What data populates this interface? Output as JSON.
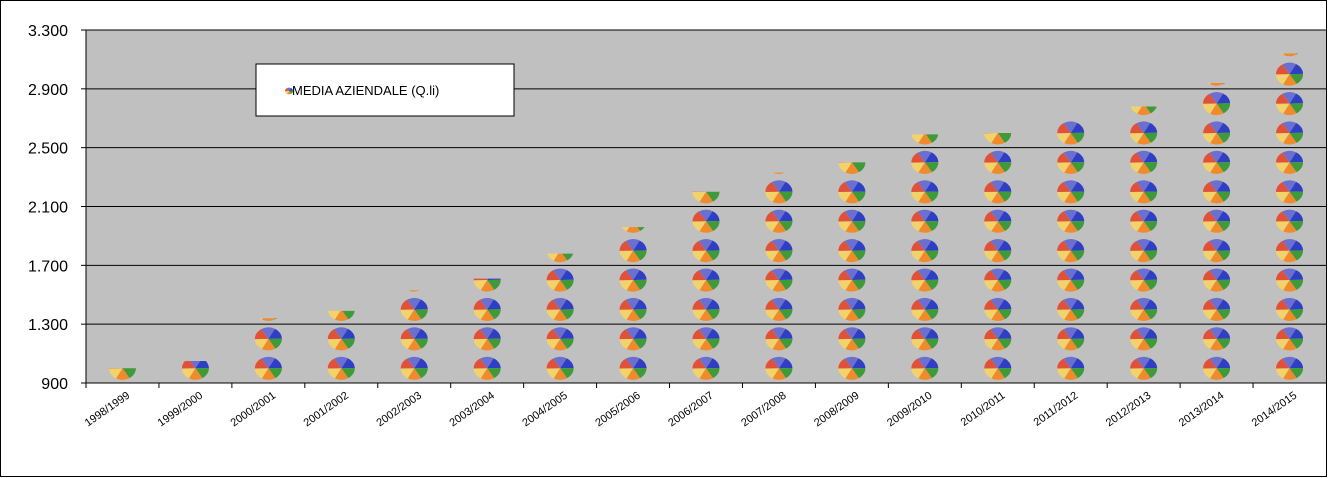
{
  "chart_data": {
    "type": "bar",
    "title": "",
    "xlabel": "",
    "ylabel": "",
    "categories": [
      "1998/1999",
      "1999/2000",
      "2000/2001",
      "2001/2002",
      "2002/2003",
      "2003/2004",
      "2004/2005",
      "2005/2006",
      "2006/2007",
      "2007/2008",
      "2008/2009",
      "2009/2010",
      "2010/2011",
      "2011/2012",
      "2012/2013",
      "2013/2014",
      "2014/2015"
    ],
    "series": [
      {
        "name": "MEDIA AZIENDALE (Q.li)",
        "values": [
          1000,
          1050,
          1340,
          1390,
          1530,
          1610,
          1780,
          1960,
          2200,
          2330,
          2400,
          2590,
          2600,
          2710,
          2780,
          2940,
          3140
        ]
      }
    ],
    "ylim": [
      900,
      3300
    ],
    "yticks": [
      900,
      1300,
      1700,
      2100,
      2500,
      2900,
      3300
    ],
    "ytick_labels": [
      "900",
      "1.300",
      "1.700",
      "2.100",
      "2.500",
      "2.900",
      "3.300"
    ],
    "grid": true,
    "legend_position": "top-left",
    "plot_background": "#c0c0c0",
    "gridline_color": "#000000",
    "pictograph_unit": 200,
    "pictograph_colors": [
      "#2e3fc4",
      "#3f9a3a",
      "#f08a2a",
      "#f2d36b",
      "#e0513a",
      "#6a6fd0"
    ]
  }
}
